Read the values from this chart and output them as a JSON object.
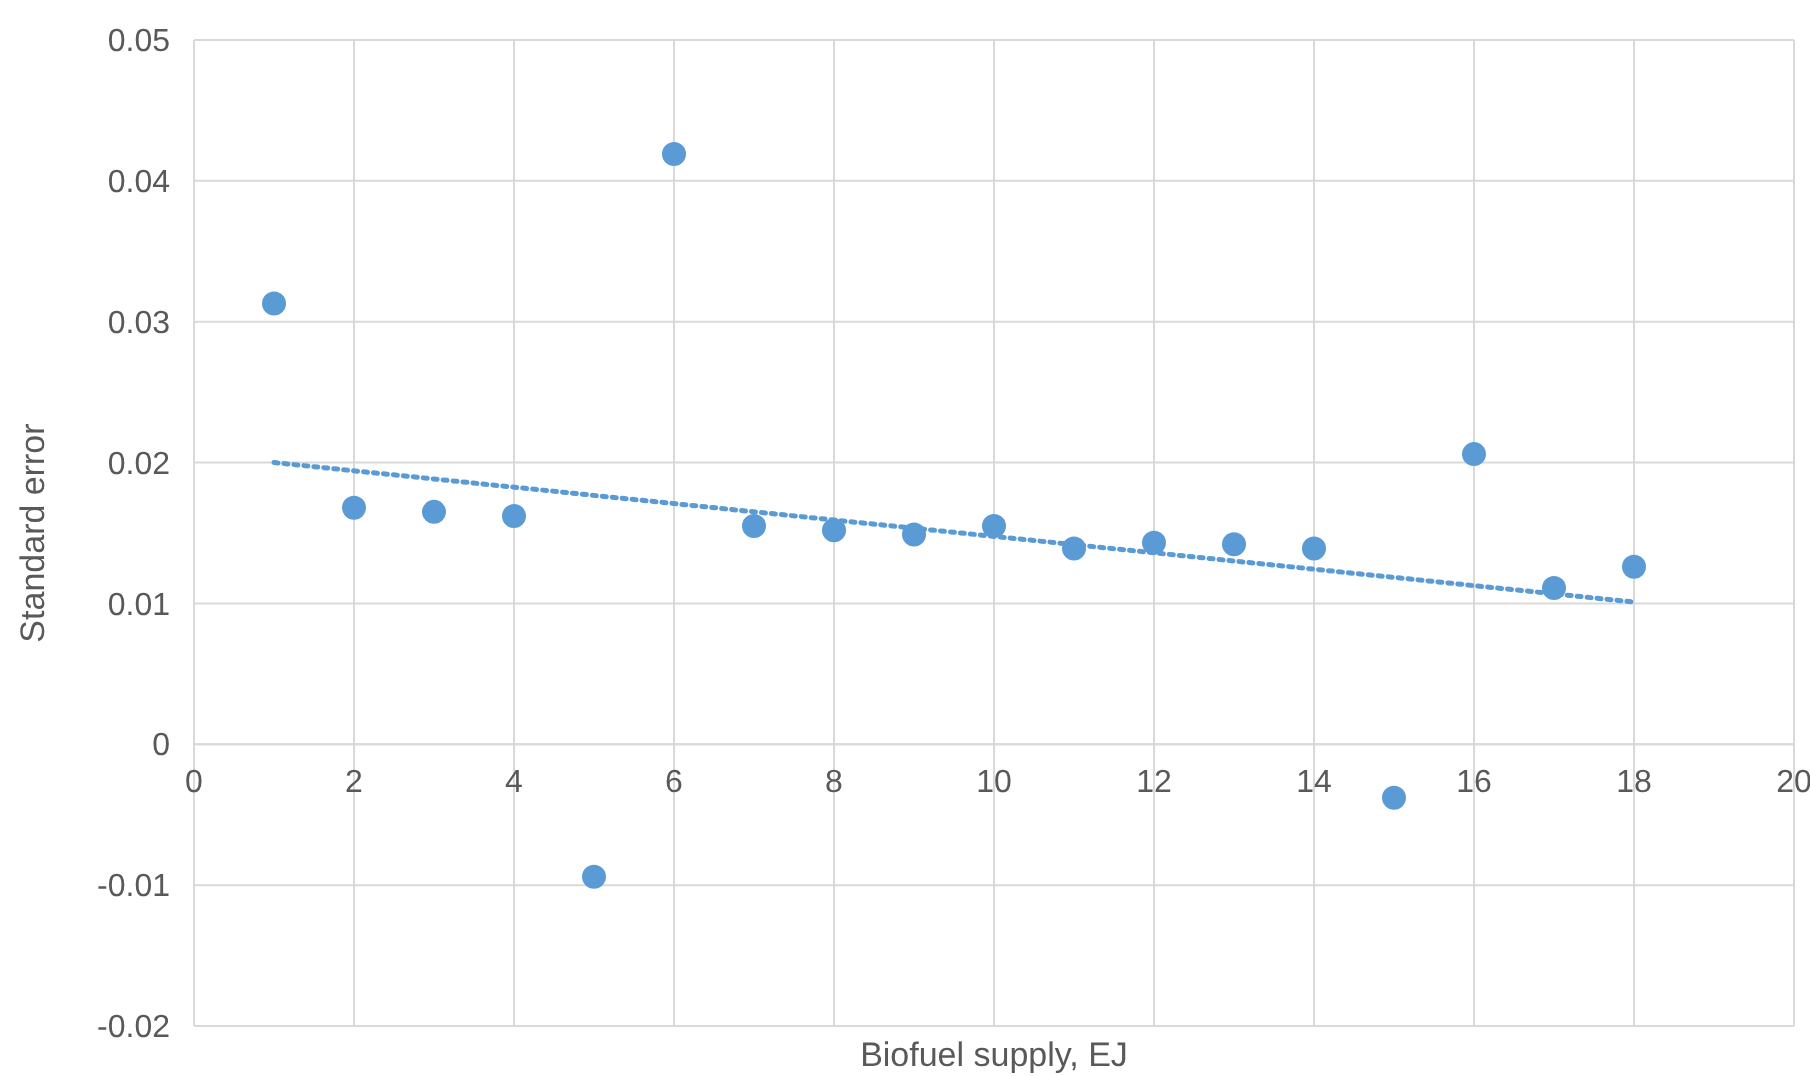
{
  "chart_data": {
    "type": "scatter",
    "xlabel": "Biofuel supply, EJ",
    "ylabel": "Standard error",
    "xlim": [
      0,
      20
    ],
    "xticks": [
      0,
      2,
      4,
      6,
      8,
      10,
      12,
      14,
      16,
      18,
      20
    ],
    "ylim": [
      -0.02,
      0.05
    ],
    "yticks": [
      -0.02,
      -0.01,
      0,
      0.01,
      0.02,
      0.03,
      0.04,
      0.05
    ],
    "grid": true,
    "marker": "circle",
    "series": [
      {
        "color": "#5b9bd5",
        "x": [
          1,
          2,
          3,
          4,
          5,
          6,
          7,
          8,
          9,
          10,
          11,
          12,
          13,
          14,
          15,
          16,
          17,
          18
        ],
        "values": [
          0.0313,
          0.0168,
          0.0165,
          0.0162,
          -0.0094,
          0.0419,
          0.0155,
          0.0152,
          0.0149,
          0.0155,
          0.0139,
          0.0143,
          0.0142,
          0.0139,
          -0.0038,
          0.0206,
          0.0111,
          0.0126
        ]
      },
      {
        "type": "line",
        "color": "#5b9bd5",
        "line_style": "dotted",
        "marker": "none",
        "x": [
          1,
          18
        ],
        "values": [
          0.02,
          0.0101
        ]
      }
    ]
  }
}
